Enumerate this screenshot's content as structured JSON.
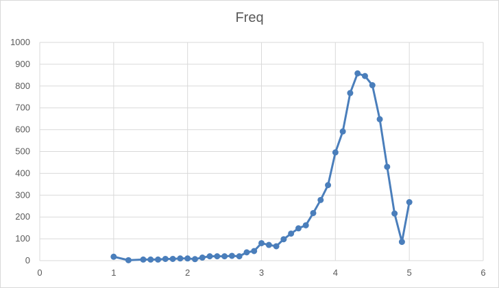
{
  "chart_data": {
    "type": "line",
    "title": "Freq",
    "xlabel": "",
    "ylabel": "",
    "xlim": [
      0,
      6
    ],
    "ylim": [
      0,
      1000
    ],
    "x_ticks": [
      "0",
      "1",
      "2",
      "3",
      "4",
      "5",
      "6"
    ],
    "y_ticks": [
      "0",
      "100",
      "200",
      "300",
      "400",
      "500",
      "600",
      "700",
      "800",
      "900",
      "1000"
    ],
    "grid": true,
    "legend": "none",
    "series_color": "#4a7ebb",
    "series": [
      {
        "x": [
          1.0,
          1.2,
          1.4,
          1.5,
          1.6,
          1.7,
          1.8,
          1.9,
          2.0,
          2.1,
          2.2,
          2.3,
          2.4,
          2.5,
          2.6,
          2.7,
          2.8,
          2.9,
          3.0,
          3.1,
          3.2,
          3.3,
          3.4,
          3.5,
          3.6,
          3.7,
          3.8,
          3.9,
          4.0,
          4.1,
          4.2,
          4.3,
          4.4,
          4.5,
          4.6,
          4.7,
          4.8,
          4.9,
          5.0
        ],
        "values": [
          18,
          2,
          5,
          5,
          5,
          8,
          8,
          10,
          10,
          7,
          14,
          20,
          20,
          20,
          22,
          20,
          38,
          44,
          80,
          72,
          66,
          98,
          124,
          148,
          162,
          218,
          278,
          346,
          496,
          592,
          768,
          858,
          846,
          804,
          648,
          430,
          216,
          86,
          268
        ]
      }
    ]
  }
}
